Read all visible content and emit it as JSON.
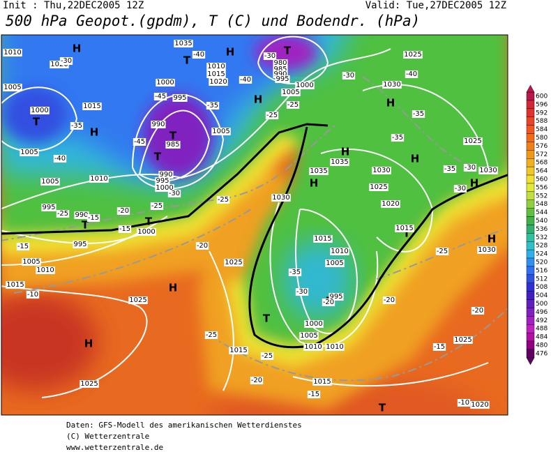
{
  "header": {
    "init": "Init : Thu,22DEC2005 12Z",
    "valid": "Valid: Tue,27DEC2005 12Z",
    "title": "500 hPa Geopot.(gpdm), T (C) und Bodendr. (hPa)"
  },
  "colorbar": {
    "ticks": [
      600,
      596,
      592,
      588,
      584,
      580,
      576,
      572,
      568,
      564,
      560,
      556,
      552,
      548,
      544,
      540,
      536,
      532,
      528,
      524,
      520,
      516,
      512,
      508,
      504,
      500,
      496,
      492,
      488,
      484,
      480,
      476
    ],
    "colors": [
      "#b8184a",
      "#d02838",
      "#e03030",
      "#e84428",
      "#f05820",
      "#f06c18",
      "#f08018",
      "#f09818",
      "#f0b020",
      "#f0c828",
      "#f0e030",
      "#e0e838",
      "#c0e040",
      "#90d040",
      "#60c040",
      "#40b048",
      "#30b070",
      "#30c0a0",
      "#30c0c8",
      "#30b0e8",
      "#3090f0",
      "#3070f0",
      "#3050e0",
      "#3030d0",
      "#4020c0",
      "#6020c0",
      "#8020c0",
      "#a020c0",
      "#c020c0",
      "#b010a0",
      "#900080",
      "#600060"
    ]
  },
  "map": {
    "pressure_centers": [
      "H",
      "H",
      "H",
      "H",
      "H",
      "H",
      "H",
      "H",
      "H",
      "H",
      "H",
      "H",
      "T",
      "T",
      "T",
      "T",
      "T",
      "T",
      "T",
      "T",
      "T",
      "T",
      "T"
    ],
    "isobar_labels": [
      1010,
      1020,
      1005,
      1015,
      1000,
      1005,
      1010,
      1005,
      995,
      990,
      995,
      1000,
      1005,
      1010,
      1015,
      1025,
      1025,
      1035,
      1010,
      1015,
      1020,
      1000,
      995,
      990,
      985,
      990,
      995,
      1000,
      1005,
      1025,
      1030,
      1035,
      1035,
      1030,
      1025,
      1020,
      1015,
      1015,
      1010,
      1005,
      995,
      1000,
      1005,
      1010,
      1010,
      1015,
      1015,
      1025,
      1020,
      1030,
      1030,
      1025,
      1030,
      1025,
      980,
      985,
      990,
      995,
      1000,
      1005
    ],
    "isotherm_labels": [
      -30,
      -35,
      -40,
      -25,
      -20,
      -15,
      -15,
      -10,
      -15,
      -25,
      -30,
      -45,
      -45,
      -40,
      -40,
      -35,
      -30,
      -30,
      -25,
      -25,
      -40,
      -35,
      -35,
      -35,
      -30,
      -30,
      -25,
      -20,
      -20,
      -25,
      -20,
      -15,
      -15,
      -20,
      -25,
      -25,
      -35,
      -30,
      -20,
      -10
    ]
  },
  "footer": {
    "lines": [
      "Daten: GFS-Modell des amerikanischen Wetterdienstes",
      "(C) Wetterzentrale",
      "www.wetterzentrale.de"
    ]
  }
}
